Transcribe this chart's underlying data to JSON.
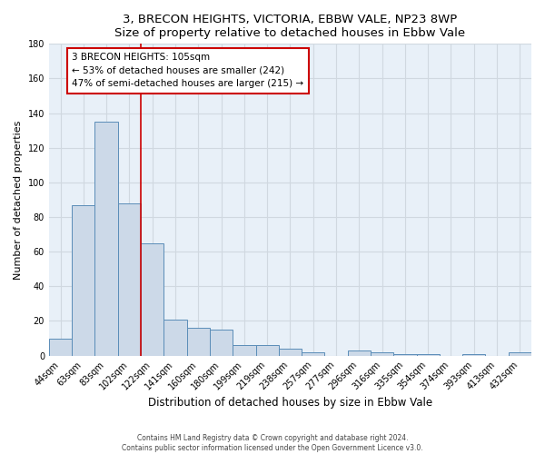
{
  "title": "3, BRECON HEIGHTS, VICTORIA, EBBW VALE, NP23 8WP",
  "subtitle": "Size of property relative to detached houses in Ebbw Vale",
  "xlabel": "Distribution of detached houses by size in Ebbw Vale",
  "ylabel": "Number of detached properties",
  "bar_labels": [
    "44sqm",
    "63sqm",
    "83sqm",
    "102sqm",
    "122sqm",
    "141sqm",
    "160sqm",
    "180sqm",
    "199sqm",
    "219sqm",
    "238sqm",
    "257sqm",
    "277sqm",
    "296sqm",
    "316sqm",
    "335sqm",
    "354sqm",
    "374sqm",
    "393sqm",
    "413sqm",
    "432sqm"
  ],
  "bar_values": [
    10,
    87,
    135,
    88,
    65,
    21,
    16,
    15,
    6,
    6,
    4,
    2,
    0,
    3,
    2,
    1,
    1,
    0,
    1,
    0,
    2
  ],
  "bar_color": "#ccd9e8",
  "bar_edge_color": "#5b8db8",
  "ylim": [
    0,
    180
  ],
  "yticks": [
    0,
    20,
    40,
    60,
    80,
    100,
    120,
    140,
    160,
    180
  ],
  "vline_x": 3.5,
  "vline_color": "#cc0000",
  "annotation_title": "3 BRECON HEIGHTS: 105sqm",
  "annotation_line1": "← 53% of detached houses are smaller (242)",
  "annotation_line2": "47% of semi-detached houses are larger (215) →",
  "footer_line1": "Contains HM Land Registry data © Crown copyright and database right 2024.",
  "footer_line2": "Contains public sector information licensed under the Open Government Licence v3.0.",
  "bg_color": "#e8f0f8",
  "fig_bg_color": "#ffffff",
  "grid_color": "#d0d8e0",
  "title_fontsize": 9.5,
  "tick_fontsize": 7,
  "xlabel_fontsize": 8.5,
  "ylabel_fontsize": 8
}
